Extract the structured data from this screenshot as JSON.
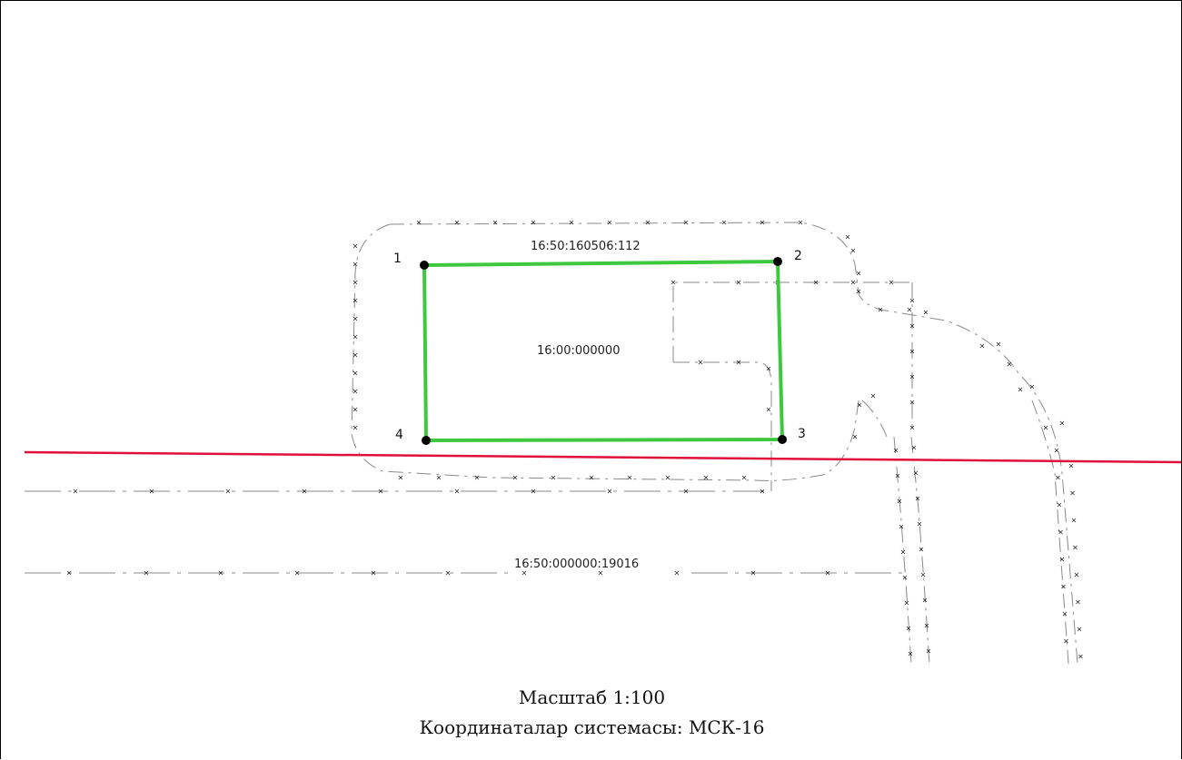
{
  "map": {
    "parcels": {
      "main": "16:50:160506:112",
      "quarter": "16:00:000000",
      "road": "16:50:000000:19016"
    },
    "vertices": [
      "1",
      "2",
      "3",
      "4"
    ],
    "colors": {
      "boundary": "#3ec83e",
      "red_line": "#e0103a",
      "dash_line": "#8a8a8a",
      "vertex": "#000000"
    }
  },
  "captions": {
    "scale": "Масштаб 1:100",
    "coordinate_system": "Координаталар системасы: МСК-16"
  }
}
